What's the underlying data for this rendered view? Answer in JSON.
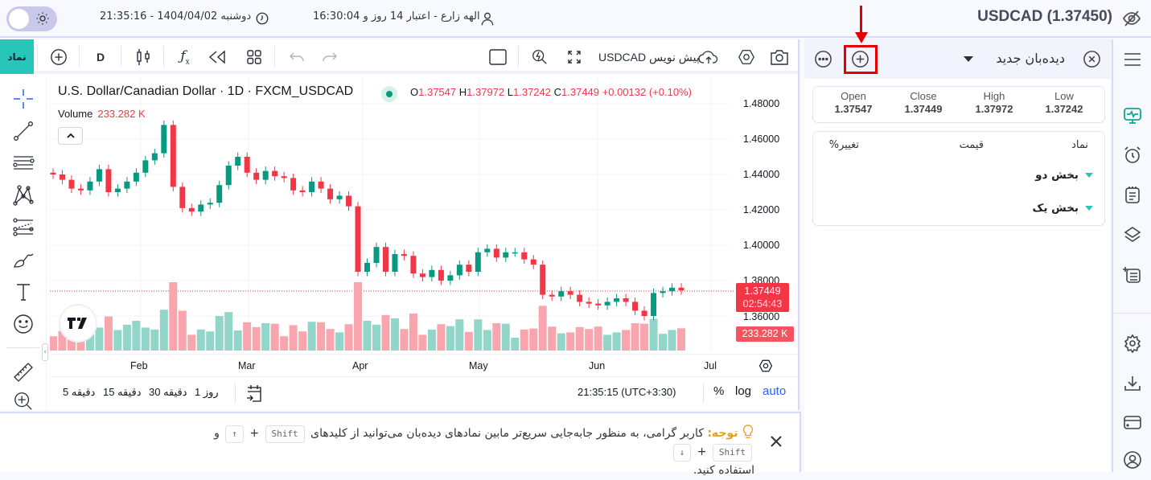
{
  "topbar": {
    "symbol_title": "USDCAD (1.37450)",
    "user_info": "الهه زارع - اعتبار 14 روز و 16:30:04",
    "datetime": "دوشنبه 1404/04/02 - 21:35:16"
  },
  "chart_toolbar": {
    "symbol_button": "نماد",
    "interval": "D",
    "symbol_search": "USDCAD پیش نویس"
  },
  "chart_header": {
    "title": "U.S. Dollar/Canadian Dollar · 1D · FXCM_USDCAD",
    "open_label": "O",
    "open": "1.37547",
    "high_label": "H",
    "high": "1.37972",
    "low_label": "L",
    "low": "1.37242",
    "close_label": "C",
    "close": "1.37449",
    "change": "+0.00132 (+0.10%)",
    "volume_label": "Volume",
    "volume_value": "233.282 K"
  },
  "price_axis": {
    "ticks": [
      "1.48000",
      "1.46000",
      "1.44000",
      "1.42000",
      "1.40000",
      "1.38000",
      "1.36000"
    ],
    "last_price": "1.37449",
    "countdown": "02:54:43",
    "volume_badge": "233.282 K"
  },
  "time_axis": {
    "labels": [
      "Feb",
      "Mar",
      "Apr",
      "May",
      "Jun",
      "Jul"
    ]
  },
  "bottom_bar": {
    "intervals": [
      "5 دقیقه",
      "15 دقیقه",
      "30 دقیقه",
      "1 روز"
    ],
    "clock": "21:35:15 (UTC+3:30)",
    "percent": "%",
    "log": "log",
    "auto": "auto"
  },
  "notice": {
    "label": "توجه:",
    "text_before": "کاربر گرامی، به منظور جابه‌جایی سریع‌تر مابین نمادهای دیده‌بان می‌توانید از کلیدهای",
    "key_shift": "Shift",
    "plus": "+",
    "key_up": "↑",
    "and": "و",
    "key_down": "↓",
    "text_after": "استفاده کنید."
  },
  "watchlist": {
    "title": "دیده‌بان جدید",
    "ohlc": [
      {
        "label": "Open",
        "value": "1.37547"
      },
      {
        "label": "Close",
        "value": "1.37449"
      },
      {
        "label": "High",
        "value": "1.37972"
      },
      {
        "label": "Low",
        "value": "1.37242"
      }
    ],
    "columns": {
      "symbol": "نماد",
      "price": "قیمت",
      "change": "تغییر%"
    },
    "sections": [
      "بخش دو",
      "بخش یک"
    ]
  },
  "colors": {
    "up": "#089981",
    "down": "#f23645",
    "accent": "#26c6b9",
    "highlight": "#e30000"
  },
  "chart_data": {
    "type": "candlestick",
    "title": "U.S. Dollar/Canadian Dollar · 1D · FXCM_USDCAD",
    "ylim": [
      1.35,
      1.485
    ],
    "x_labels": [
      "Feb",
      "Mar",
      "Apr",
      "May",
      "Jun",
      "Jul"
    ],
    "approx_close_path": [
      1.44,
      1.437,
      1.432,
      1.431,
      1.436,
      1.443,
      1.43,
      1.432,
      1.436,
      1.441,
      1.448,
      1.452,
      1.468,
      1.433,
      1.421,
      1.419,
      1.423,
      1.424,
      1.434,
      1.445,
      1.45,
      1.441,
      1.437,
      1.442,
      1.439,
      1.438,
      1.431,
      1.43,
      1.436,
      1.432,
      1.426,
      1.428,
      1.422,
      1.385,
      1.39,
      1.399,
      1.385,
      1.395,
      1.394,
      1.384,
      1.382,
      1.386,
      1.38,
      1.383,
      1.389,
      1.385,
      1.396,
      1.398,
      1.393,
      1.396,
      1.396,
      1.392,
      1.389,
      1.372,
      1.371,
      1.374,
      1.372,
      1.368,
      1.367,
      1.366,
      1.368,
      1.37,
      1.368,
      1.363,
      1.36,
      1.373,
      1.374,
      1.376,
      1.3745
    ],
    "last_close": 1.37449,
    "volume_last": "233.282 K"
  }
}
